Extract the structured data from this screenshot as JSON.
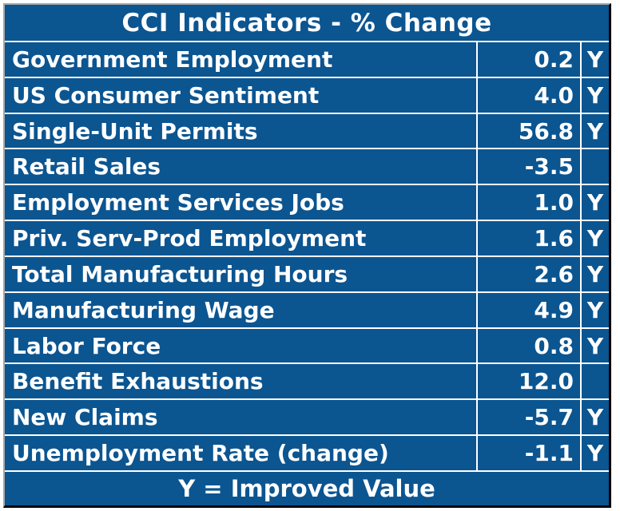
{
  "chart_data": {
    "type": "table",
    "title": "CCI Indicators - % Change",
    "footnote": "Y = Improved Value",
    "rows": [
      {
        "label": "Government Employment",
        "value": "0.2",
        "flag": "Y"
      },
      {
        "label": "US Consumer Sentiment",
        "value": "4.0",
        "flag": "Y"
      },
      {
        "label": "Single-Unit Permits",
        "value": "56.8",
        "flag": "Y"
      },
      {
        "label": "Retail Sales",
        "value": "-3.5",
        "flag": ""
      },
      {
        "label": "Employment Services Jobs",
        "value": "1.0",
        "flag": "Y"
      },
      {
        "label": "Priv. Serv-Prod Employment",
        "value": "1.6",
        "flag": "Y"
      },
      {
        "label": "Total Manufacturing Hours",
        "value": "2.6",
        "flag": "Y"
      },
      {
        "label": "Manufacturing Wage",
        "value": "4.9",
        "flag": "Y"
      },
      {
        "label": "Labor Force",
        "value": "0.8",
        "flag": "Y"
      },
      {
        "label": "Benefit Exhaustions",
        "value": "12.0",
        "flag": ""
      },
      {
        "label": "New Claims",
        "value": "-5.7",
        "flag": "Y"
      },
      {
        "label": "Unemployment Rate (change)",
        "value": "-1.1",
        "flag": "Y"
      }
    ]
  },
  "colors": {
    "table_background": "#0B5591",
    "text": "#FFFFFF",
    "grid_lines": "#FFFFFF",
    "outer_border_light": "#A8A8A8",
    "outer_border_dark": "#000000",
    "page_background": "#FFFFFF"
  }
}
